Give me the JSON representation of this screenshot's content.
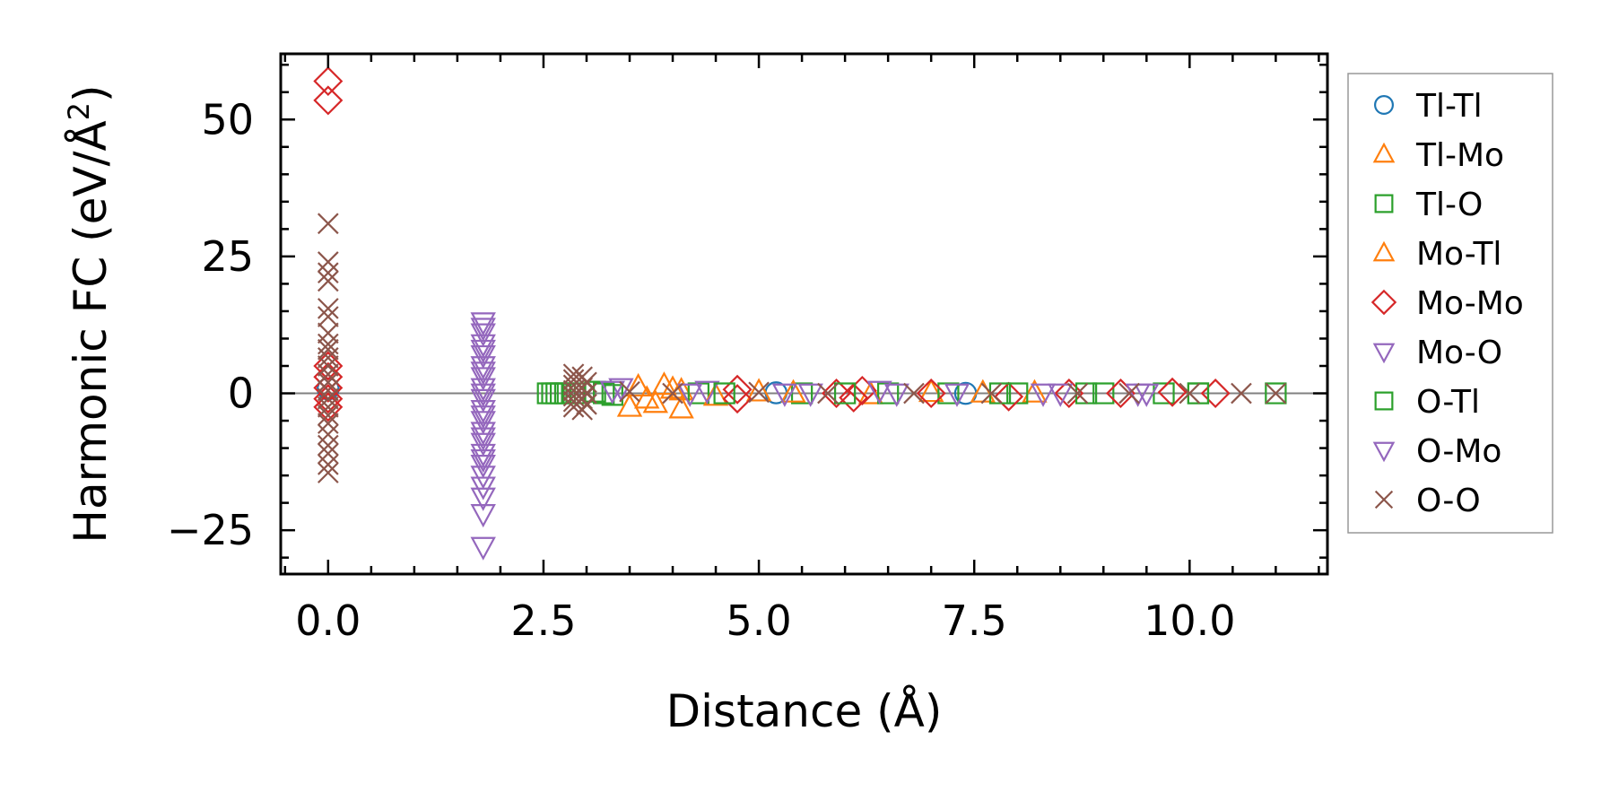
{
  "chart_data": {
    "type": "scatter",
    "title": "",
    "xlabel": "Distance (Å)",
    "ylabel_main": "Harmonic FC (eV/Å",
    "ylabel_sup": "2",
    "ylabel_close": ")",
    "xlim": [
      -0.55,
      11.6
    ],
    "ylim": [
      -33,
      62
    ],
    "xticks": [
      0.0,
      2.5,
      5.0,
      7.5,
      10.0
    ],
    "xtick_labels": [
      "0.0",
      "2.5",
      "5.0",
      "7.5",
      "10.0"
    ],
    "yticks": [
      -25,
      0,
      25,
      50
    ],
    "ytick_labels": [
      "−25",
      "0",
      "25",
      "50"
    ],
    "zero_line": true,
    "grid": false,
    "legend_position": "outside-right",
    "series": [
      {
        "name": "Tl-Tl",
        "marker": "circle",
        "color": "#1f77b4",
        "points": [
          [
            0.0,
            0.8
          ],
          [
            5.2,
            0.1
          ],
          [
            7.4,
            0.0
          ]
        ]
      },
      {
        "name": "Tl-Mo",
        "marker": "triangle-up",
        "color": "#ff7f0e",
        "points": [
          [
            3.5,
            -2.5
          ],
          [
            3.8,
            -1.8
          ],
          [
            3.9,
            1.5
          ],
          [
            4.1,
            -2.8
          ],
          [
            4.1,
            0.5
          ],
          [
            3.6,
            1.2
          ],
          [
            5.0,
            0.3
          ],
          [
            6.3,
            -0.2
          ],
          [
            7.0,
            0.2
          ],
          [
            8.2,
            0.1
          ]
        ]
      },
      {
        "name": "Tl-O",
        "marker": "square",
        "color": "#2ca02c",
        "points": [
          [
            2.55,
            0.0
          ],
          [
            2.65,
            0.0
          ],
          [
            2.75,
            0.0
          ],
          [
            2.85,
            0.0
          ],
          [
            3.1,
            0.3
          ],
          [
            3.3,
            -0.3
          ],
          [
            4.3,
            0.0
          ],
          [
            5.5,
            0.0
          ],
          [
            6.5,
            0.0
          ],
          [
            7.2,
            0.0
          ],
          [
            8.0,
            0.0
          ],
          [
            9.0,
            0.0
          ],
          [
            9.7,
            0.0
          ],
          [
            10.1,
            0.0
          ],
          [
            11.0,
            0.0
          ]
        ]
      },
      {
        "name": "Mo-Tl",
        "marker": "triangle-up",
        "color": "#ff7f0e",
        "points": [
          [
            3.7,
            -1.0
          ],
          [
            4.0,
            0.8
          ],
          [
            4.5,
            -0.5
          ],
          [
            5.4,
            0.1
          ],
          [
            7.6,
            0.1
          ]
        ]
      },
      {
        "name": "Mo-Mo",
        "marker": "diamond",
        "color": "#d62728",
        "points": [
          [
            0.0,
            57
          ],
          [
            0.0,
            53.5
          ],
          [
            0.0,
            5.0
          ],
          [
            0.0,
            3.0
          ],
          [
            0.0,
            1.0
          ],
          [
            0.0,
            -1.0
          ],
          [
            0.0,
            -2.5
          ],
          [
            4.75,
            0.7
          ],
          [
            4.75,
            -1.0
          ],
          [
            5.9,
            0.0
          ],
          [
            6.1,
            -0.8
          ],
          [
            6.2,
            0.5
          ],
          [
            7.0,
            0.0
          ],
          [
            7.9,
            -0.6
          ],
          [
            8.6,
            0.0
          ],
          [
            9.2,
            0.0
          ],
          [
            9.8,
            0.2
          ],
          [
            10.3,
            0.0
          ]
        ]
      },
      {
        "name": "Mo-O",
        "marker": "triangle-down",
        "color": "#9467bd",
        "points": [
          [
            1.8,
            13
          ],
          [
            1.8,
            11
          ],
          [
            1.8,
            9
          ],
          [
            1.8,
            7
          ],
          [
            1.8,
            5
          ],
          [
            1.8,
            3
          ],
          [
            1.8,
            1
          ],
          [
            1.8,
            -1
          ],
          [
            1.8,
            -3
          ],
          [
            1.8,
            -5
          ],
          [
            1.8,
            -7
          ],
          [
            1.8,
            -9
          ],
          [
            1.8,
            -11
          ],
          [
            1.8,
            -13
          ],
          [
            1.8,
            -15
          ],
          [
            1.8,
            -19
          ],
          [
            1.8,
            -22
          ],
          [
            1.8,
            -28
          ],
          [
            3.4,
            1.0
          ],
          [
            4.4,
            0.5
          ],
          [
            5.6,
            0.0
          ],
          [
            6.4,
            0.5
          ],
          [
            7.3,
            0.0
          ],
          [
            8.3,
            0.0
          ],
          [
            9.5,
            0.0
          ]
        ]
      },
      {
        "name": "O-Tl",
        "marker": "square",
        "color": "#2ca02c",
        "points": [
          [
            2.6,
            0.0
          ],
          [
            2.7,
            0.0
          ],
          [
            3.2,
            0.0
          ],
          [
            4.6,
            0.0
          ],
          [
            6.0,
            0.0
          ],
          [
            7.8,
            0.0
          ],
          [
            8.8,
            0.0
          ],
          [
            10.1,
            0.0
          ]
        ]
      },
      {
        "name": "O-Mo",
        "marker": "triangle-down",
        "color": "#9467bd",
        "points": [
          [
            1.8,
            12
          ],
          [
            1.8,
            8
          ],
          [
            1.8,
            4
          ],
          [
            1.8,
            0
          ],
          [
            1.8,
            -4
          ],
          [
            1.8,
            -8
          ],
          [
            1.8,
            -12
          ],
          [
            1.8,
            -17
          ],
          [
            3.3,
            0.5
          ],
          [
            4.2,
            0.0
          ],
          [
            5.3,
            0.0
          ],
          [
            6.6,
            0.0
          ],
          [
            8.5,
            0.0
          ],
          [
            9.4,
            0.0
          ]
        ]
      },
      {
        "name": "O-O",
        "marker": "x",
        "color": "#8c564b",
        "points": [
          [
            0.0,
            31
          ],
          [
            0.0,
            24
          ],
          [
            0.0,
            22
          ],
          [
            0.0,
            20.5
          ],
          [
            0.0,
            15.5
          ],
          [
            0.0,
            14
          ],
          [
            0.0,
            11
          ],
          [
            0.0,
            9
          ],
          [
            0.0,
            8
          ],
          [
            0.0,
            6.5
          ],
          [
            0.0,
            5
          ],
          [
            0.0,
            3.5
          ],
          [
            0.0,
            2
          ],
          [
            0.0,
            0.5
          ],
          [
            0.0,
            -1
          ],
          [
            0.0,
            -2.5
          ],
          [
            0.0,
            -4
          ],
          [
            0.0,
            -5.5
          ],
          [
            0.0,
            -7.5
          ],
          [
            0.0,
            -9.5
          ],
          [
            0.0,
            -11
          ],
          [
            0.0,
            -13
          ],
          [
            0.0,
            -14.5
          ],
          [
            2.85,
            3.5
          ],
          [
            2.85,
            2.5
          ],
          [
            2.85,
            1.5
          ],
          [
            2.85,
            0.5
          ],
          [
            2.85,
            -0.5
          ],
          [
            2.85,
            -1.5
          ],
          [
            2.85,
            -2.5
          ],
          [
            2.95,
            3.0
          ],
          [
            2.95,
            1.0
          ],
          [
            2.95,
            -1.0
          ],
          [
            2.95,
            -3.0
          ],
          [
            3.0,
            2.0
          ],
          [
            3.0,
            0.0
          ],
          [
            3.0,
            -2.0
          ],
          [
            3.5,
            0.3
          ],
          [
            4.0,
            0.0
          ],
          [
            5.0,
            0.2
          ],
          [
            5.8,
            0.0
          ],
          [
            6.8,
            0.0
          ],
          [
            7.7,
            0.0
          ],
          [
            8.7,
            0.0
          ],
          [
            9.3,
            0.0
          ],
          [
            10.0,
            0.0
          ],
          [
            10.6,
            0.0
          ],
          [
            11.0,
            0.0
          ]
        ]
      }
    ]
  }
}
